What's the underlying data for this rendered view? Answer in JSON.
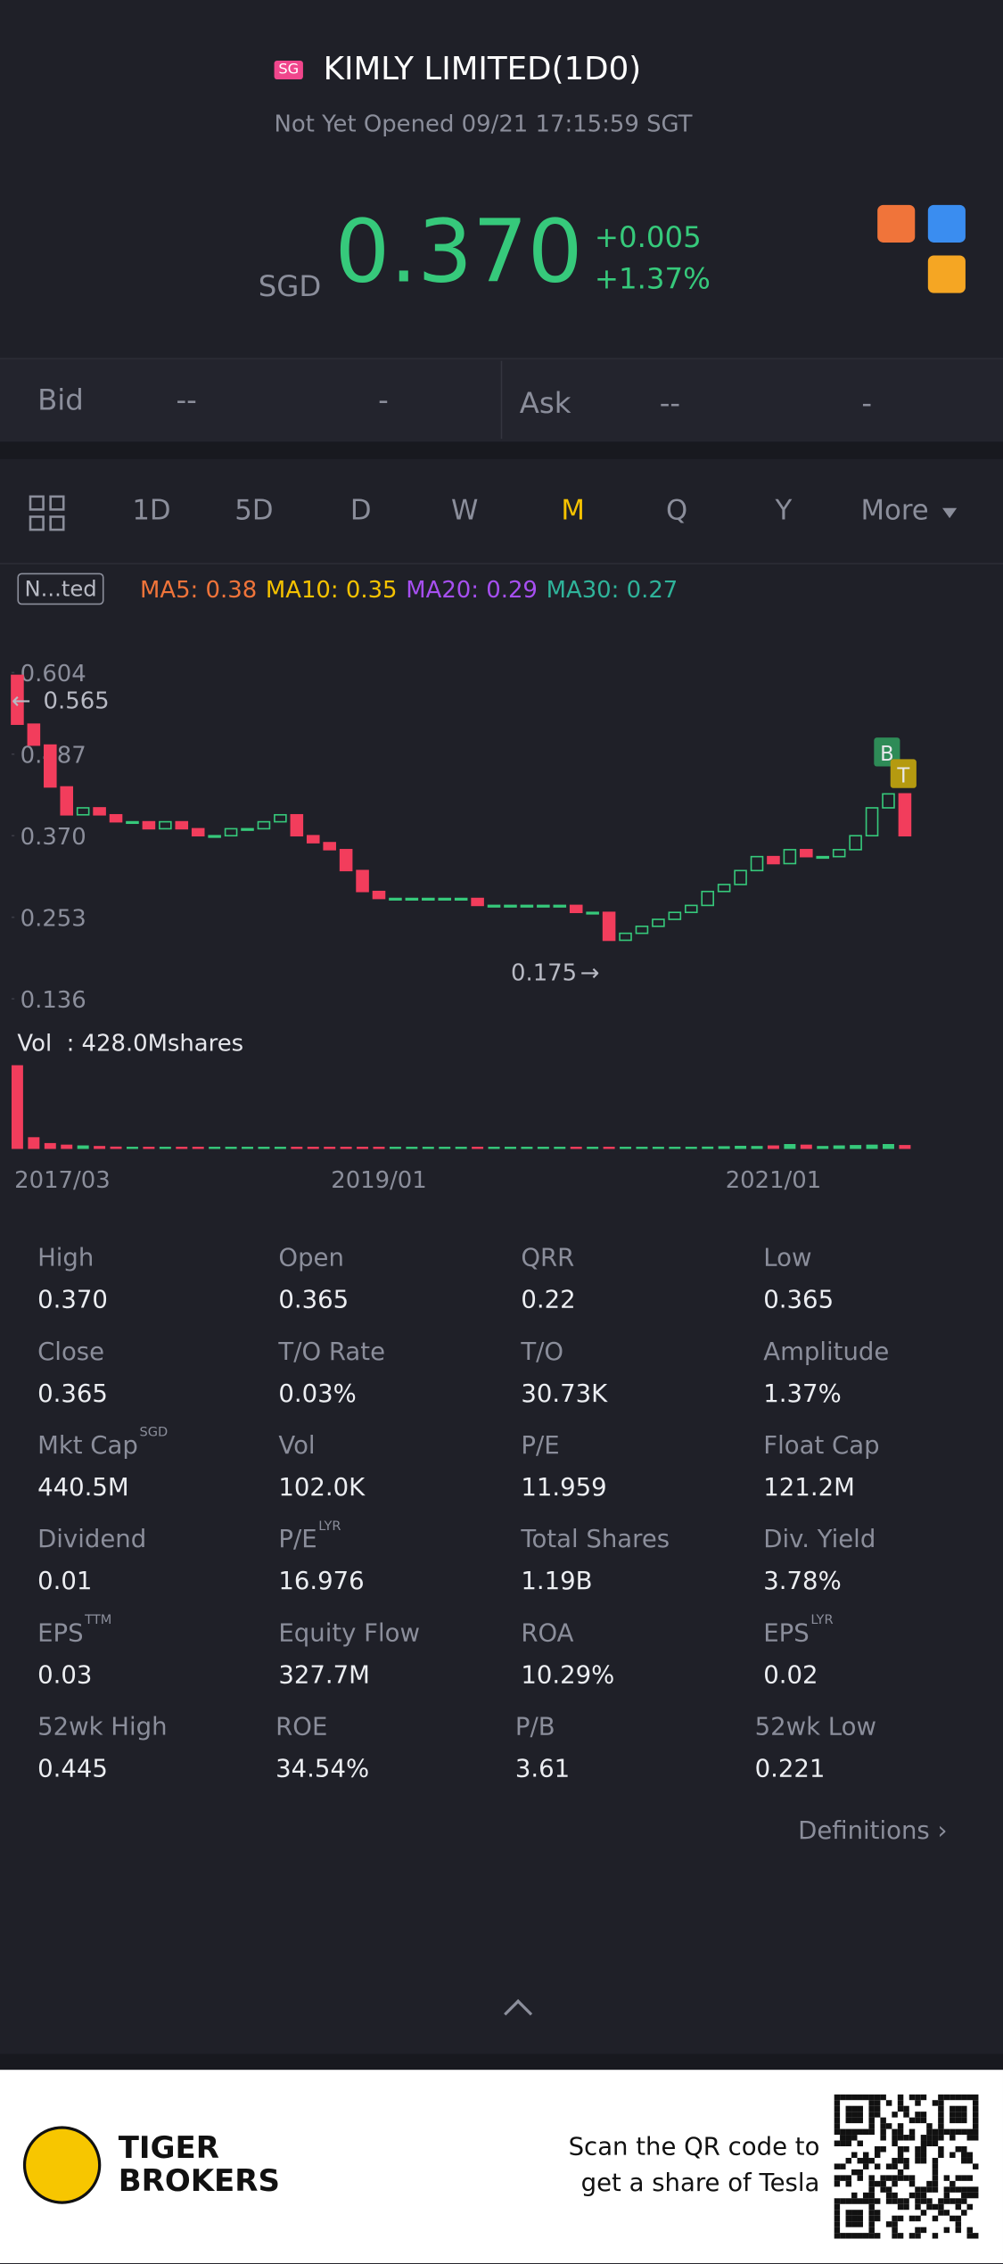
{
  "header": {
    "badge": "SG",
    "title": "KIMLY LIMITED(1D0)",
    "status": "Not Yet Opened 09/21 17:15:59 SGT"
  },
  "quote": {
    "currency": "SGD",
    "price": "0.370",
    "change": "+0.005",
    "change_pct": "+1.37%"
  },
  "book": {
    "bid_label": "Bid",
    "bid_price": "--",
    "bid_size": "-",
    "ask_label": "Ask",
    "ask_price": "--",
    "ask_size": "-"
  },
  "tabs": {
    "items": [
      "1D",
      "5D",
      "D",
      "W",
      "M",
      "Q",
      "Y",
      "More"
    ],
    "active": "M"
  },
  "indicator_tag": "N...ted",
  "chart_data": {
    "type": "candlestick",
    "indicators": [
      {
        "label": "MA5: 0.38",
        "color": "#f0743a"
      },
      {
        "label": "MA10: 0.35",
        "color": "#f5c200"
      },
      {
        "label": "MA20: 0.29",
        "color": "#a64ff0"
      },
      {
        "label": "MA30: 0.27",
        "color": "#2fb39a"
      }
    ],
    "ylim": [
      0.136,
      0.604
    ],
    "yticks": [
      0.604,
      0.487,
      {
        "value": 0.37,
        "label": "0.370"
      },
      0.253,
      0.136
    ],
    "max_marker": 0.565,
    "min_marker": 0.175,
    "signals": [
      "B",
      "T"
    ],
    "volume_label": "Vol  : 428.0Mshares",
    "up_color": "#36c97b",
    "down_color": "#f23d5c",
    "categories": [
      "2017/03",
      null,
      null,
      null,
      null,
      null,
      null,
      null,
      null,
      null,
      null,
      null,
      null,
      null,
      null,
      null,
      null,
      null,
      null,
      null,
      null,
      null,
      "2019/01",
      null,
      null,
      null,
      null,
      null,
      null,
      null,
      null,
      null,
      null,
      null,
      null,
      null,
      null,
      null,
      null,
      null,
      null,
      null,
      null,
      null,
      null,
      null,
      "2021/01",
      null,
      null,
      null,
      null,
      null,
      null,
      null,
      null
    ],
    "open": [
      0.6,
      0.53,
      0.5,
      0.44,
      0.4,
      0.41,
      0.4,
      0.39,
      0.39,
      0.38,
      0.39,
      0.38,
      0.37,
      0.37,
      0.38,
      0.38,
      0.39,
      0.4,
      0.37,
      0.36,
      0.35,
      0.32,
      0.29,
      0.28,
      0.28,
      0.28,
      0.28,
      0.28,
      0.28,
      0.27,
      0.27,
      0.27,
      0.27,
      0.27,
      0.27,
      0.26,
      0.26,
      0.22,
      0.23,
      0.24,
      0.25,
      0.26,
      0.27,
      0.29,
      0.3,
      0.32,
      0.34,
      0.33,
      0.35,
      0.34,
      0.34,
      0.35,
      0.37,
      0.41,
      0.43
    ],
    "close": [
      0.53,
      0.5,
      0.44,
      0.4,
      0.41,
      0.4,
      0.39,
      0.39,
      0.38,
      0.39,
      0.38,
      0.37,
      0.37,
      0.38,
      0.38,
      0.39,
      0.4,
      0.37,
      0.36,
      0.35,
      0.32,
      0.29,
      0.28,
      0.28,
      0.28,
      0.28,
      0.28,
      0.28,
      0.27,
      0.27,
      0.27,
      0.27,
      0.27,
      0.27,
      0.26,
      0.26,
      0.22,
      0.23,
      0.24,
      0.25,
      0.26,
      0.27,
      0.29,
      0.3,
      0.32,
      0.34,
      0.33,
      0.35,
      0.34,
      0.34,
      0.35,
      0.37,
      0.41,
      0.43,
      0.37
    ],
    "volume": [
      428,
      60,
      30,
      22,
      18,
      15,
      12,
      10,
      9,
      9,
      8,
      8,
      7,
      7,
      7,
      6,
      6,
      6,
      6,
      6,
      6,
      6,
      5,
      5,
      5,
      5,
      5,
      5,
      5,
      5,
      5,
      5,
      5,
      5,
      5,
      6,
      6,
      6,
      7,
      8,
      9,
      10,
      12,
      14,
      16,
      15,
      18,
      25,
      22,
      15,
      18,
      20,
      22,
      25,
      20
    ]
  },
  "stats": [
    [
      {
        "label": "High",
        "value": "0.370"
      },
      {
        "label": "Open",
        "value": "0.365"
      },
      {
        "label": "QRR",
        "value": "0.22"
      },
      {
        "label": "Low",
        "value": "0.365"
      }
    ],
    [
      {
        "label": "Close",
        "value": "0.365"
      },
      {
        "label": "T/O Rate",
        "value": "0.03%"
      },
      {
        "label": "T/O",
        "value": "30.73K"
      },
      {
        "label": "Amplitude",
        "value": "1.37%"
      }
    ],
    [
      {
        "label": "Mkt Cap",
        "sup": "SGD",
        "value": "440.5M"
      },
      {
        "label": "Vol",
        "value": "102.0K"
      },
      {
        "label": "P/E",
        "value": "11.959"
      },
      {
        "label": "Float Cap",
        "value": "121.2M"
      }
    ],
    [
      {
        "label": "Dividend",
        "value": "0.01"
      },
      {
        "label": "P/E",
        "sup": "LYR",
        "value": "16.976"
      },
      {
        "label": "Total Shares",
        "value": "1.19B"
      },
      {
        "label": "Div. Yield",
        "value": "3.78%"
      }
    ],
    [
      {
        "label": "EPS",
        "sup": "TTM",
        "value": "0.03"
      },
      {
        "label": "Equity Flow",
        "value": "327.7M"
      },
      {
        "label": "ROA",
        "value": "10.29%"
      },
      {
        "label": "EPS",
        "sup": "LYR",
        "value": "0.02"
      }
    ],
    [
      {
        "label": "52wk High",
        "value": "0.445"
      },
      {
        "label": "ROE",
        "value": "34.54%"
      },
      {
        "label": "P/B",
        "value": "3.61"
      },
      {
        "label": "52wk Low",
        "value": "0.221"
      }
    ]
  ],
  "definitions": "Definitions",
  "footer": {
    "brand_line1": "TIGER",
    "brand_line2": "BROKERS",
    "promo_line1": "Scan the QR code to",
    "promo_line2": "get a share of Tesla"
  }
}
